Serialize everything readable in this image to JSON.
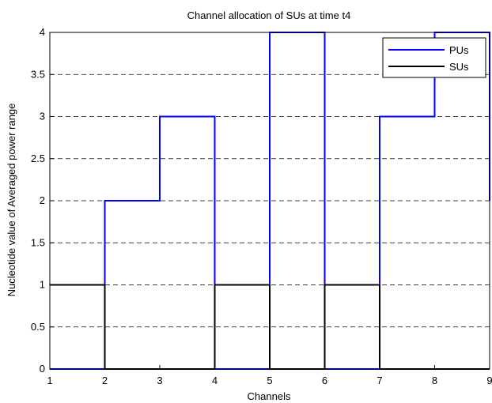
{
  "chart_data": {
    "type": "line",
    "step": "post",
    "title": "Channel allocation of SUs at time t4",
    "xlabel": "Channels",
    "ylabel": "Nucleotide value of Averaged power range",
    "xlim": [
      1,
      9
    ],
    "ylim": [
      0,
      4
    ],
    "x_ticks": [
      "1",
      "2",
      "3",
      "4",
      "5",
      "6",
      "7",
      "8",
      "9"
    ],
    "y_ticks": [
      "0",
      "0.5",
      "1",
      "1.5",
      "2",
      "2.5",
      "3",
      "3.5",
      "4"
    ],
    "grid": "horizontal-dashed",
    "legend_position": "top-right",
    "x": [
      1,
      2,
      3,
      4,
      5,
      6,
      7,
      8,
      9
    ],
    "series": [
      {
        "name": "PUs",
        "color": "#0000ff",
        "values": [
          0,
          2,
          3,
          0,
          4,
          0,
          3,
          4,
          2
        ]
      },
      {
        "name": "SUs",
        "color": "#000000",
        "values": [
          1,
          0,
          0,
          1,
          0,
          1,
          0,
          0,
          0
        ]
      }
    ]
  }
}
